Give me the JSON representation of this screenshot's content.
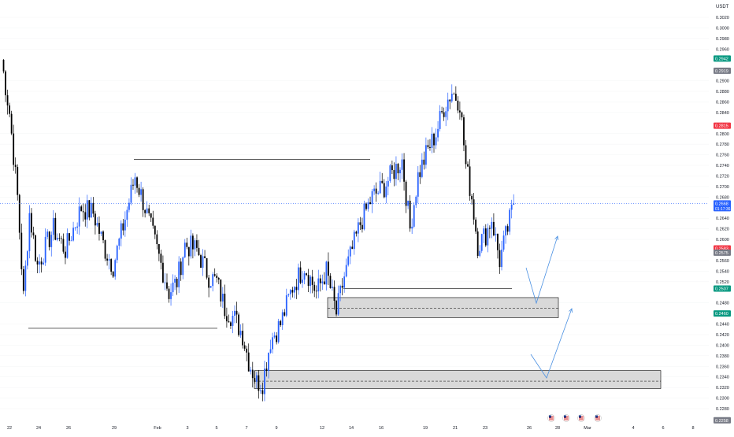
{
  "price_axis": {
    "currency": "USDT",
    "tick_labels": [
      "0.3020",
      "0.3000",
      "0.2980",
      "0.2960",
      "0.2900",
      "0.2880",
      "0.2860",
      "0.2840",
      "0.2800",
      "0.2780",
      "0.2760",
      "0.2740",
      "0.2720",
      "0.2700",
      "0.2680",
      "0.2640",
      "0.2620",
      "0.2600",
      "0.2560",
      "0.2540",
      "0.2520",
      "0.2480",
      "0.2440",
      "0.2420",
      "0.2400",
      "0.2380",
      "0.2360",
      "0.2340",
      "0.2320",
      "0.2300",
      "0.2280"
    ],
    "badges": [
      {
        "label": "0.2942",
        "color": "#089981"
      },
      {
        "label": "0.2919",
        "color": "#787b86"
      },
      {
        "label": "0.2815",
        "color": "#f23645"
      },
      {
        "label": "0.2668",
        "sub": "01:17:36",
        "color": "#2962ff"
      },
      {
        "label": "0.2583",
        "color": "#f23645"
      },
      {
        "label": "0.2575",
        "color": "#787b86"
      },
      {
        "label": "0.2507",
        "color": "#089981"
      },
      {
        "label": "0.2460",
        "color": "#089981"
      },
      {
        "label": "0.2258",
        "color": "#787b86"
      }
    ]
  },
  "time_axis": {
    "labels": [
      "22",
      "24",
      "26",
      "29",
      "Feb",
      "3",
      "5",
      "7",
      "9",
      "12",
      "14",
      "16",
      "19",
      "21",
      "23",
      "26",
      "28",
      "Mar",
      "4",
      "6",
      "8"
    ]
  },
  "event_markers": [
    "us-flag-icon",
    "us-flag-icon",
    "us-flag-icon",
    "us-flag-icon"
  ],
  "colors": {
    "bull": "#2962ff",
    "bear": "#000000",
    "zone_fill": "#d9d9d9",
    "projection": "#4a90e2",
    "last_price_line": "#2962ff"
  },
  "chart_data": {
    "type": "candlestick",
    "symbol_quote": "USDT",
    "ylim": [
      0.2258,
      0.303
    ],
    "x_range_days": [
      0,
      50
    ],
    "last_price": 0.2668,
    "candle_count": 250,
    "anchors": [
      [
        0,
        0.294
      ],
      [
        4,
        0.284
      ],
      [
        8,
        0.268
      ],
      [
        11,
        0.249
      ],
      [
        14,
        0.265
      ],
      [
        18,
        0.255
      ],
      [
        26,
        0.262
      ],
      [
        32,
        0.258
      ],
      [
        40,
        0.266
      ],
      [
        46,
        0.265
      ],
      [
        52,
        0.258
      ],
      [
        56,
        0.255
      ],
      [
        62,
        0.264
      ],
      [
        67,
        0.272
      ],
      [
        72,
        0.266
      ],
      [
        78,
        0.258
      ],
      [
        84,
        0.25
      ],
      [
        88,
        0.252
      ],
      [
        92,
        0.259
      ],
      [
        98,
        0.258
      ],
      [
        104,
        0.253
      ],
      [
        108,
        0.252
      ],
      [
        112,
        0.247
      ],
      [
        117,
        0.245
      ],
      [
        121,
        0.242
      ],
      [
        124,
        0.237
      ],
      [
        128,
        0.233
      ],
      [
        131,
        0.233
      ],
      [
        135,
        0.241
      ],
      [
        140,
        0.244
      ],
      [
        146,
        0.251
      ],
      [
        152,
        0.255
      ],
      [
        158,
        0.25
      ],
      [
        163,
        0.254
      ],
      [
        168,
        0.246
      ],
      [
        172,
        0.253
      ],
      [
        176,
        0.258
      ],
      [
        180,
        0.263
      ],
      [
        186,
        0.268
      ],
      [
        192,
        0.27
      ],
      [
        197,
        0.273
      ],
      [
        201,
        0.275
      ],
      [
        205,
        0.262
      ],
      [
        209,
        0.272
      ],
      [
        214,
        0.277
      ],
      [
        218,
        0.28
      ],
      [
        222,
        0.285
      ],
      [
        226,
        0.288
      ],
      [
        230,
        0.286
      ],
      [
        233,
        0.274
      ],
      [
        236,
        0.268
      ],
      [
        239,
        0.259
      ],
      [
        243,
        0.261
      ],
      [
        246,
        0.264
      ],
      [
        250,
        0.256
      ],
      [
        254,
        0.262
      ],
      [
        257,
        0.2668
      ]
    ],
    "levels": [
      {
        "price": 0.2432,
        "x_from": 4,
        "x_to": 172
      },
      {
        "price": 0.2751,
        "x_from": 102,
        "x_to": 286
      },
      {
        "price": 0.2507,
        "x_from": 265,
        "x_to": 404
      }
    ],
    "zones": [
      {
        "top": 0.249,
        "bottom": 0.2452,
        "mid": 0.247,
        "x_from": 259,
        "x_to": 441
      },
      {
        "top": 0.2352,
        "bottom": 0.2318,
        "mid": 0.2332,
        "x_from": 200,
        "x_to": 524
      }
    ],
    "projections": [
      [
        [
          416,
          0.2535
        ],
        [
          425,
          0.2485
        ],
        [
          441,
          0.26
        ]
      ],
      [
        [
          421,
          0.2384
        ],
        [
          435,
          0.2345
        ],
        [
          453,
          0.2468
        ]
      ]
    ]
  }
}
